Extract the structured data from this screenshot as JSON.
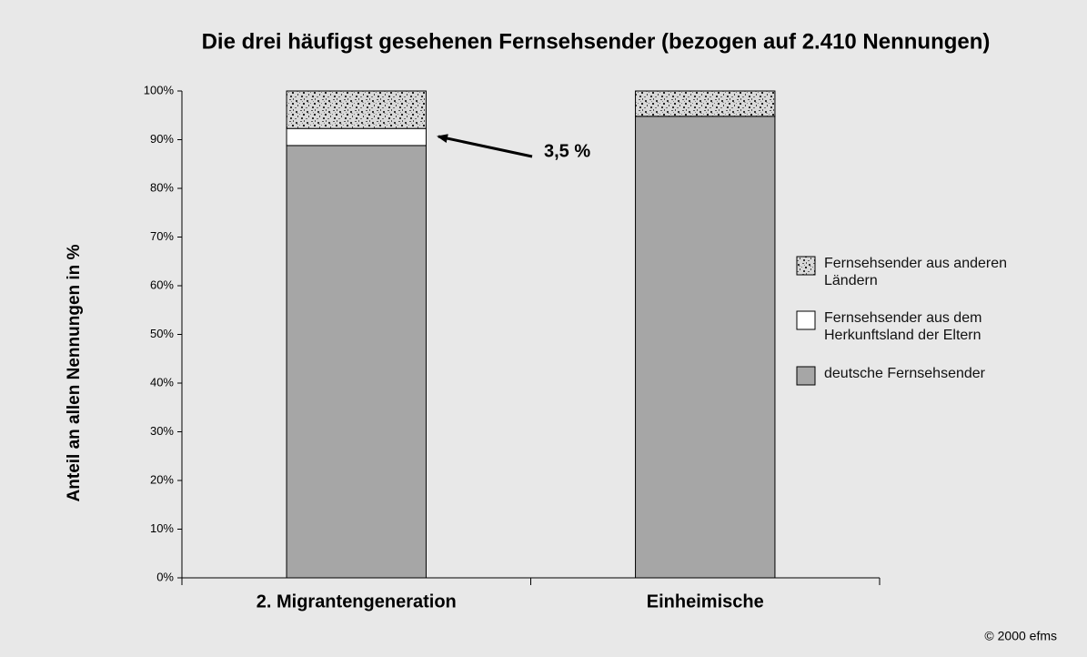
{
  "chart_data": {
    "type": "stacked_bar",
    "title": "Die drei häufigst gesehenen Fernsehsender (bezogen auf 2.410 Nennungen)",
    "y_label": "Anteil an allen Nennungen in %",
    "categories": [
      "2. Migrantengeneration",
      "Einheimische"
    ],
    "series": [
      {
        "name": "deutsche Fernsehsender",
        "color": "#a6a6a6",
        "values": [
          88.8,
          94.8
        ]
      },
      {
        "name": "Fernsehsender aus dem Herkunftsland der Eltern",
        "color": "#ffffff",
        "values": [
          3.5,
          0
        ]
      },
      {
        "name": "Fernsehsender aus anderen Ländern",
        "color": "#cfcfcf",
        "pattern": "speckle",
        "values": [
          7.7,
          5.2
        ]
      }
    ],
    "ylim": [
      0,
      100
    ],
    "yticks": [
      {
        "value": 0,
        "label": "0%"
      },
      {
        "value": 10,
        "label": "10%"
      },
      {
        "value": 20,
        "label": "20%"
      },
      {
        "value": 30,
        "label": "30%"
      },
      {
        "value": 40,
        "label": "40%"
      },
      {
        "value": 50,
        "label": "50%"
      },
      {
        "value": 60,
        "label": "60%"
      },
      {
        "value": 70,
        "label": "70%"
      },
      {
        "value": 80,
        "label": "80%"
      },
      {
        "value": 90,
        "label": "90%"
      },
      {
        "value": 100,
        "label": "100%"
      }
    ],
    "legend": "right",
    "annotation": "3,5 %",
    "credit": "© 2000 efms"
  }
}
